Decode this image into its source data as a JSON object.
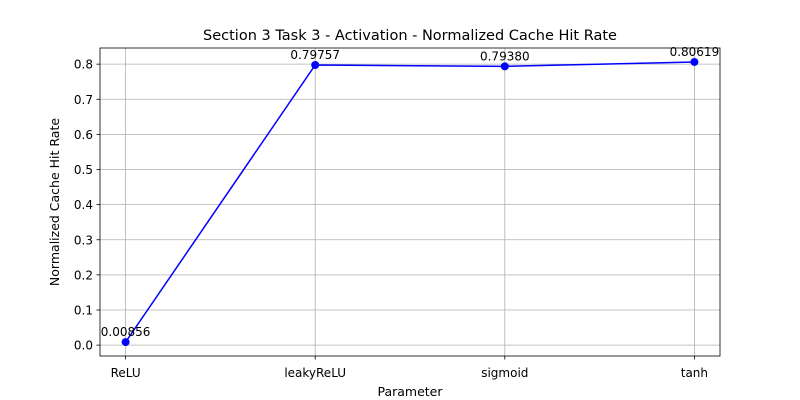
{
  "chart_data": {
    "type": "line",
    "title": "Section 3 Task 3 - Activation - Normalized Cache Hit Rate",
    "xlabel": "Parameter",
    "ylabel": "Normalized Cache Hit Rate",
    "categories": [
      "ReLU",
      "leakyReLU",
      "sigmoid",
      "tanh"
    ],
    "series": [
      {
        "values": [
          0.00856,
          0.79757,
          0.7938,
          0.80619
        ]
      }
    ],
    "data_labels": [
      "0.00856",
      "0.79757",
      "0.79380",
      "0.80619"
    ],
    "y_ticks": [
      0.0,
      0.1,
      0.2,
      0.3,
      0.4,
      0.5,
      0.6,
      0.7,
      0.8
    ],
    "y_tick_labels": [
      "0.0",
      "0.1",
      "0.2",
      "0.3",
      "0.4",
      "0.5",
      "0.6",
      "0.7",
      "0.8"
    ],
    "ylim": [
      -0.031,
      0.846
    ],
    "grid": true,
    "colors": {
      "line": "#0000ff",
      "marker": "#0000ff",
      "grid": "#b0b0b0",
      "axes": "#000000"
    }
  }
}
